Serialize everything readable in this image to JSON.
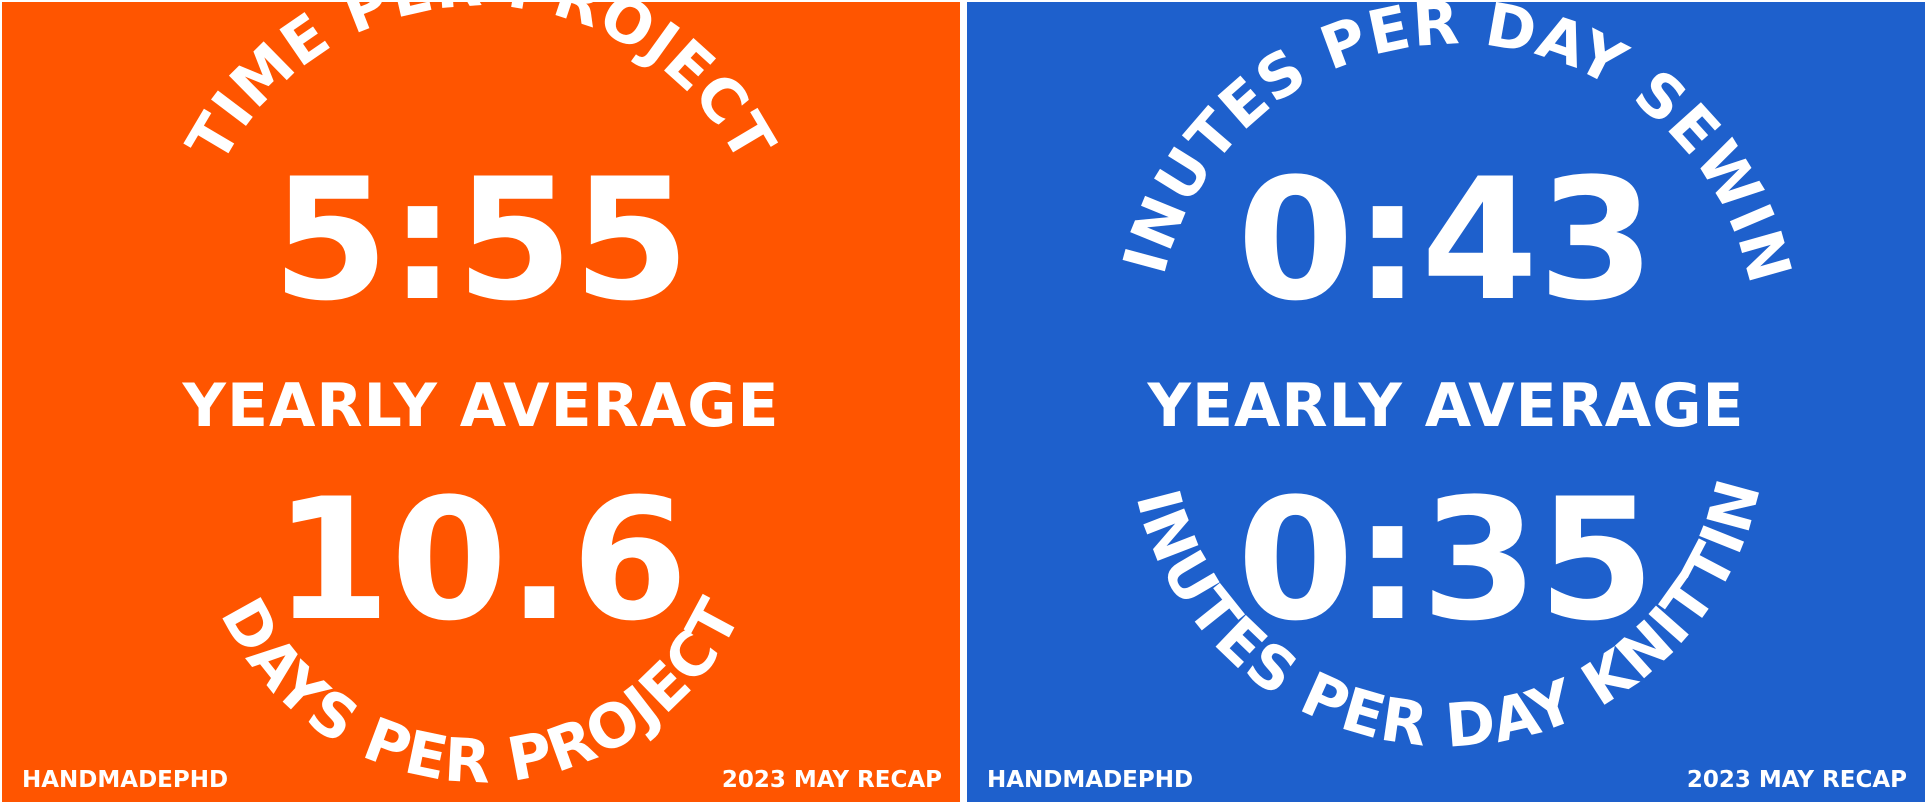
{
  "colors": {
    "left_background": "#FF5500",
    "right_background": "#1E60CC",
    "text": "#FFFFFF",
    "divider": "#FFFFFF"
  },
  "left_panel": {
    "top_arc_label": "TIME PER PROJECT",
    "top_value": "5:55",
    "middle_label": "YEARLY AVERAGE",
    "bottom_value": "10.6",
    "bottom_arc_label": "DAYS PER PROJECT",
    "footer_brand": "HANDMADEPHD",
    "footer_period": "2023 MAY RECAP"
  },
  "right_panel": {
    "top_arc_label": "MINUTES PER DAY SEWING",
    "top_value": "0:43",
    "middle_label": "YEARLY AVERAGE",
    "bottom_value": "0:35",
    "bottom_arc_label": "MINUTES PER DAY KNITTING",
    "footer_brand": "HANDMADEPHD",
    "footer_period": "2023 MAY RECAP"
  }
}
